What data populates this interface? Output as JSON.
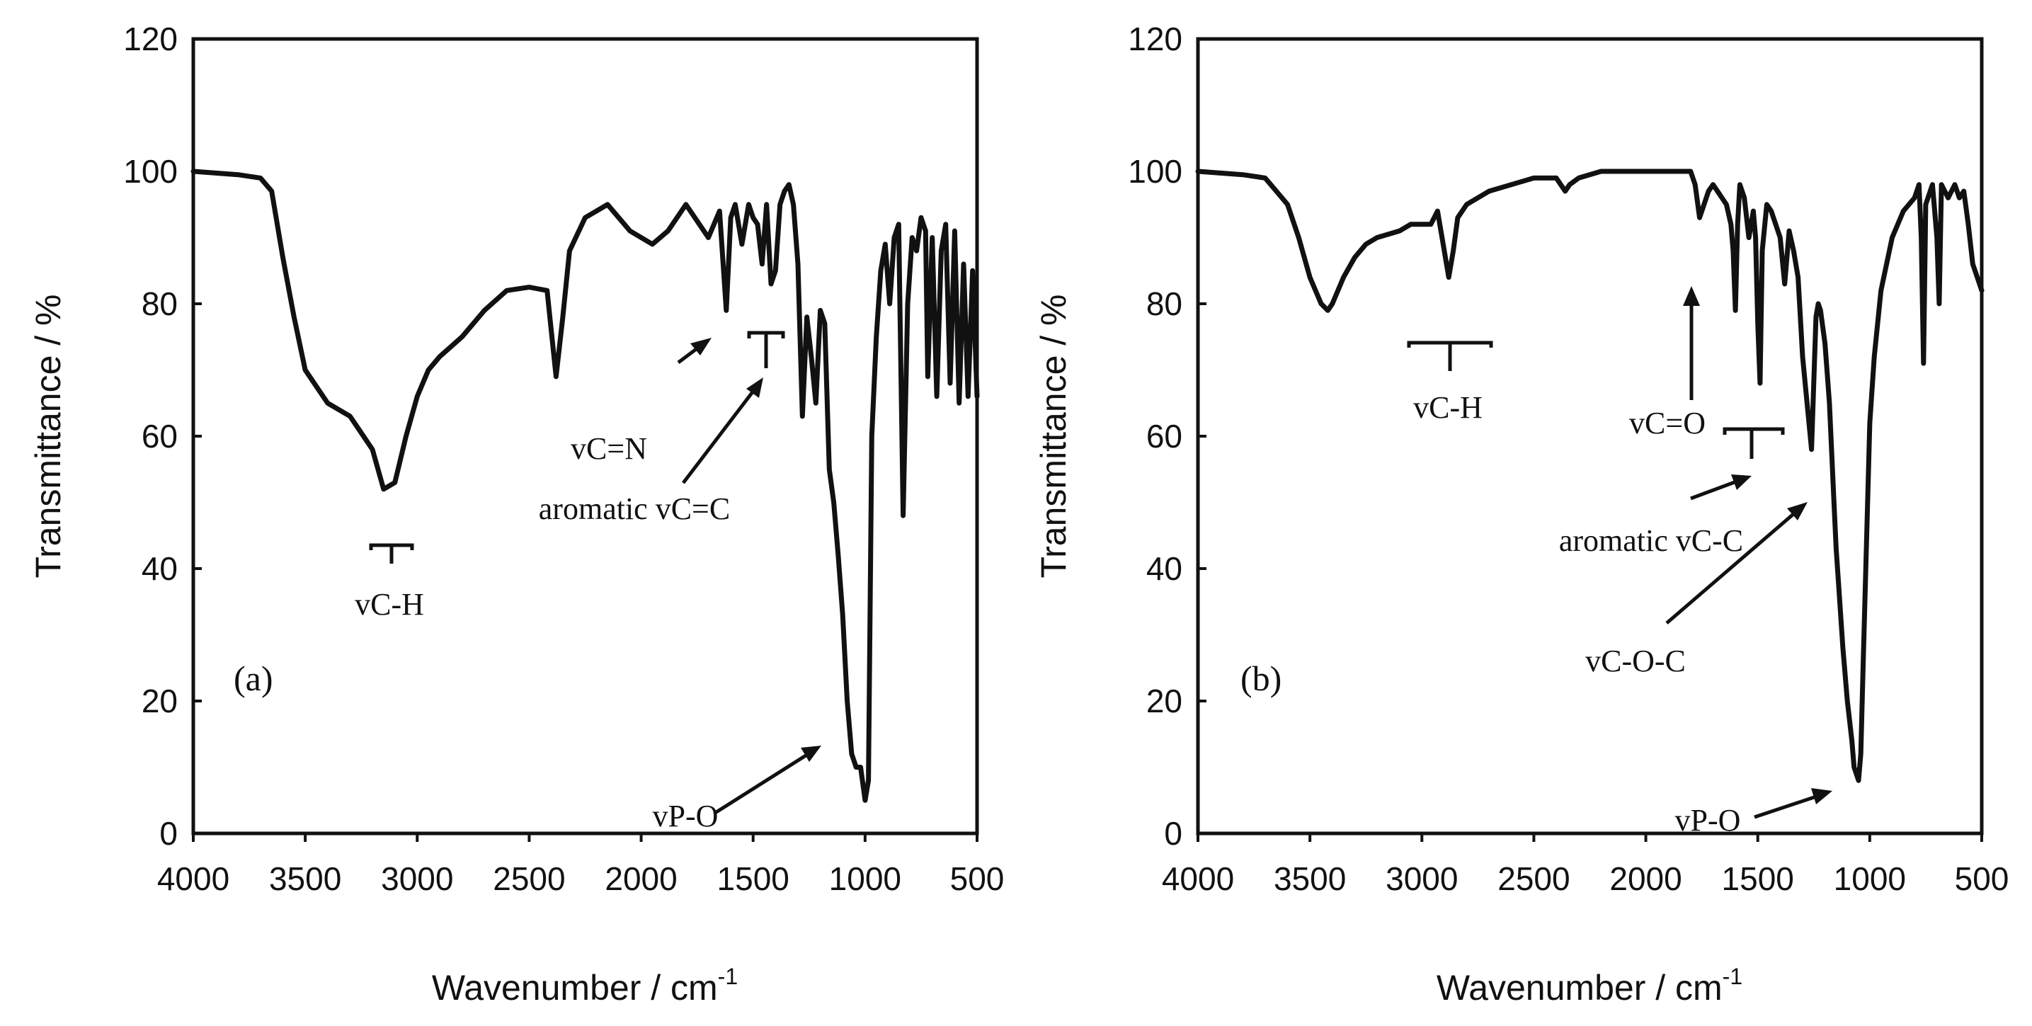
{
  "chart_data": [
    {
      "type": "line",
      "panel_label": "(a)",
      "title": "",
      "xlabel": "Wavenumber / cm",
      "xlabel_sup": "-1",
      "ylabel": "Transmittance / %",
      "xlim": [
        4000,
        500
      ],
      "ylim": [
        0,
        120
      ],
      "x_ticks": [
        "4000",
        "3500",
        "3000",
        "2500",
        "2000",
        "1500",
        "1000",
        "500"
      ],
      "y_ticks": [
        "0",
        "20",
        "40",
        "60",
        "80",
        "100",
        "120"
      ],
      "grid": false,
      "legend": "none",
      "series": [
        {
          "name": "spectrum (a)",
          "x": [
            4000,
            3800,
            3700,
            3650,
            3600,
            3550,
            3500,
            3400,
            3300,
            3200,
            3150,
            3100,
            3050,
            3000,
            2950,
            2900,
            2800,
            2700,
            2600,
            2500,
            2420,
            2380,
            2350,
            2320,
            2250,
            2150,
            2050,
            1950,
            1880,
            1800,
            1700,
            1650,
            1620,
            1600,
            1580,
            1550,
            1520,
            1500,
            1480,
            1460,
            1440,
            1420,
            1400,
            1380,
            1360,
            1340,
            1320,
            1300,
            1280,
            1260,
            1240,
            1220,
            1200,
            1180,
            1160,
            1140,
            1120,
            1100,
            1080,
            1060,
            1040,
            1020,
            1000,
            985,
            970,
            950,
            930,
            910,
            890,
            870,
            850,
            830,
            810,
            790,
            770,
            750,
            730,
            720,
            700,
            680,
            660,
            640,
            620,
            600,
            580,
            560,
            540,
            520,
            500
          ],
          "values": [
            100,
            99.5,
            99,
            97,
            87,
            78,
            70,
            65,
            63,
            58,
            52,
            53,
            60,
            66,
            70,
            72,
            75,
            79,
            82,
            82.5,
            82,
            69,
            78,
            88,
            93,
            95,
            91,
            89,
            91,
            95,
            90,
            94,
            79,
            93,
            95,
            89,
            95,
            93,
            92,
            86,
            95,
            83,
            85,
            95,
            97,
            98,
            95,
            86,
            63,
            78,
            72,
            65,
            79,
            77,
            55,
            50,
            42,
            33,
            20,
            12,
            10,
            10,
            5,
            8,
            60,
            75,
            85,
            89,
            80,
            90,
            92,
            48,
            80,
            90,
            88,
            93,
            91,
            69,
            90,
            66,
            88,
            92,
            68,
            91,
            65,
            86,
            66,
            85,
            66
          ]
        }
      ],
      "annotations": [
        {
          "text": "vC-H"
        },
        {
          "text": "vC=N"
        },
        {
          "text": "aromatic vC=C"
        },
        {
          "text": "vP-O"
        }
      ]
    },
    {
      "type": "line",
      "panel_label": "(b)",
      "title": "",
      "xlabel": "Wavenumber / cm",
      "xlabel_sup": "-1",
      "ylabel": "Transmittance / %",
      "xlim": [
        4000,
        500
      ],
      "ylim": [
        0,
        120
      ],
      "x_ticks": [
        "4000",
        "3500",
        "3000",
        "2500",
        "2000",
        "1500",
        "1000",
        "500"
      ],
      "y_ticks": [
        "0",
        "20",
        "40",
        "60",
        "80",
        "100",
        "120"
      ],
      "grid": false,
      "legend": "none",
      "series": [
        {
          "name": "spectrum (b)",
          "x": [
            4000,
            3800,
            3700,
            3650,
            3600,
            3550,
            3500,
            3450,
            3420,
            3400,
            3350,
            3300,
            3250,
            3200,
            3100,
            3050,
            3000,
            2960,
            2930,
            2900,
            2880,
            2860,
            2840,
            2800,
            2700,
            2600,
            2500,
            2400,
            2360,
            2340,
            2300,
            2200,
            2100,
            2000,
            1900,
            1800,
            1780,
            1760,
            1740,
            1720,
            1700,
            1680,
            1660,
            1640,
            1620,
            1610,
            1600,
            1590,
            1580,
            1560,
            1540,
            1520,
            1510,
            1500,
            1490,
            1480,
            1460,
            1440,
            1400,
            1380,
            1360,
            1340,
            1320,
            1300,
            1280,
            1260,
            1240,
            1230,
            1220,
            1200,
            1180,
            1160,
            1150,
            1140,
            1120,
            1100,
            1080,
            1070,
            1060,
            1050,
            1040,
            1030,
            1000,
            980,
            950,
            900,
            850,
            800,
            780,
            770,
            760,
            750,
            720,
            700,
            690,
            680,
            650,
            620,
            600,
            580,
            560,
            540,
            520,
            500
          ],
          "values": [
            100,
            99.5,
            99,
            97,
            95,
            90,
            84,
            80,
            79,
            80,
            84,
            87,
            89,
            90,
            91,
            92,
            92,
            92,
            94,
            88,
            84,
            88,
            93,
            95,
            97,
            98,
            99,
            99,
            97,
            98,
            99,
            100,
            100,
            100,
            100,
            100,
            98,
            93,
            95,
            97,
            98,
            97,
            96,
            95,
            92,
            88,
            79,
            92,
            98,
            96,
            90,
            94,
            90,
            77,
            68,
            88,
            95,
            94,
            90,
            83,
            91,
            88,
            84,
            72,
            65,
            58,
            78,
            80,
            79,
            74,
            65,
            50,
            43,
            38,
            28,
            20,
            14,
            10,
            9,
            8,
            12,
            25,
            62,
            72,
            82,
            90,
            94,
            96,
            98,
            90,
            71,
            95,
            98,
            90,
            80,
            98,
            96,
            98,
            96,
            97,
            92,
            86,
            84,
            82
          ]
        }
      ],
      "annotations": [
        {
          "text": "vC-H"
        },
        {
          "text": "vC=O"
        },
        {
          "text": "aromatic vC-C"
        },
        {
          "text": "vC-O-C"
        },
        {
          "text": "vP-O"
        }
      ]
    }
  ]
}
